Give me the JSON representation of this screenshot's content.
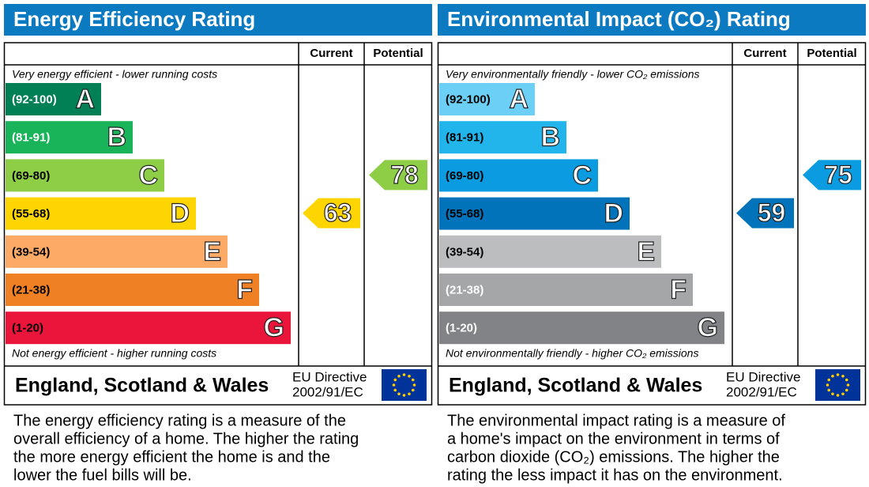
{
  "chart_data": [
    {
      "type": "rating",
      "title": "Energy Efficiency Rating",
      "headers": [
        "Current",
        "Potential"
      ],
      "top_note": "Very energy efficient - lower running costs",
      "bottom_note": "Not energy efficient - higher running costs",
      "bands": [
        {
          "range": "(92-100)",
          "letter": "A",
          "color": "#008054",
          "label_color": "#ffffff"
        },
        {
          "range": "(81-91)",
          "letter": "B",
          "color": "#19b459",
          "label_color": "#ffffff"
        },
        {
          "range": "(69-80)",
          "letter": "C",
          "color": "#8dce46",
          "label_color": "#000000"
        },
        {
          "range": "(55-68)",
          "letter": "D",
          "color": "#ffd500",
          "label_color": "#000000"
        },
        {
          "range": "(39-54)",
          "letter": "E",
          "color": "#fcaa65",
          "label_color": "#000000"
        },
        {
          "range": "(21-38)",
          "letter": "F",
          "color": "#ef8023",
          "label_color": "#000000"
        },
        {
          "range": "(1-20)",
          "letter": "G",
          "color": "#e9153b",
          "label_color": "#000000"
        }
      ],
      "current": 63,
      "potential": 78,
      "region": "England, Scotland & Wales",
      "directive": [
        "EU Directive",
        "2002/91/EC"
      ],
      "description": [
        "The energy efficiency rating is a measure of the",
        "overall efficiency of a home. The higher the rating",
        "the more energy efficient the home is and the",
        "lower the fuel bills will be."
      ]
    },
    {
      "type": "rating",
      "title": "Environmental Impact (CO₂) Rating",
      "headers": [
        "Current",
        "Potential"
      ],
      "top_note": "Very environmentally friendly - lower CO₂ emissions",
      "bottom_note": "Not environmentally friendly - higher CO₂ emissions",
      "bands": [
        {
          "range": "(92-100)",
          "letter": "A",
          "color": "#6ccff6",
          "label_color": "#000000"
        },
        {
          "range": "(81-91)",
          "letter": "B",
          "color": "#22b5ec",
          "label_color": "#000000"
        },
        {
          "range": "(69-80)",
          "letter": "C",
          "color": "#0a9be0",
          "label_color": "#000000"
        },
        {
          "range": "(55-68)",
          "letter": "D",
          "color": "#0073bb",
          "label_color": "#000000"
        },
        {
          "range": "(39-54)",
          "letter": "E",
          "color": "#bbbdbf",
          "label_color": "#000000"
        },
        {
          "range": "(21-38)",
          "letter": "F",
          "color": "#a4a6a8",
          "label_color": "#ffffff"
        },
        {
          "range": "(1-20)",
          "letter": "G",
          "color": "#818386",
          "label_color": "#ffffff"
        }
      ],
      "current": 59,
      "potential": 75,
      "region": "England, Scotland & Wales",
      "directive": [
        "EU Directive",
        "2002/91/EC"
      ],
      "description": [
        "The environmental impact rating is a measure of",
        "a home's impact on the environment in terms of",
        "carbon dioxide (CO₂) emissions. The higher the",
        "rating the less impact it has on the environment."
      ]
    }
  ]
}
